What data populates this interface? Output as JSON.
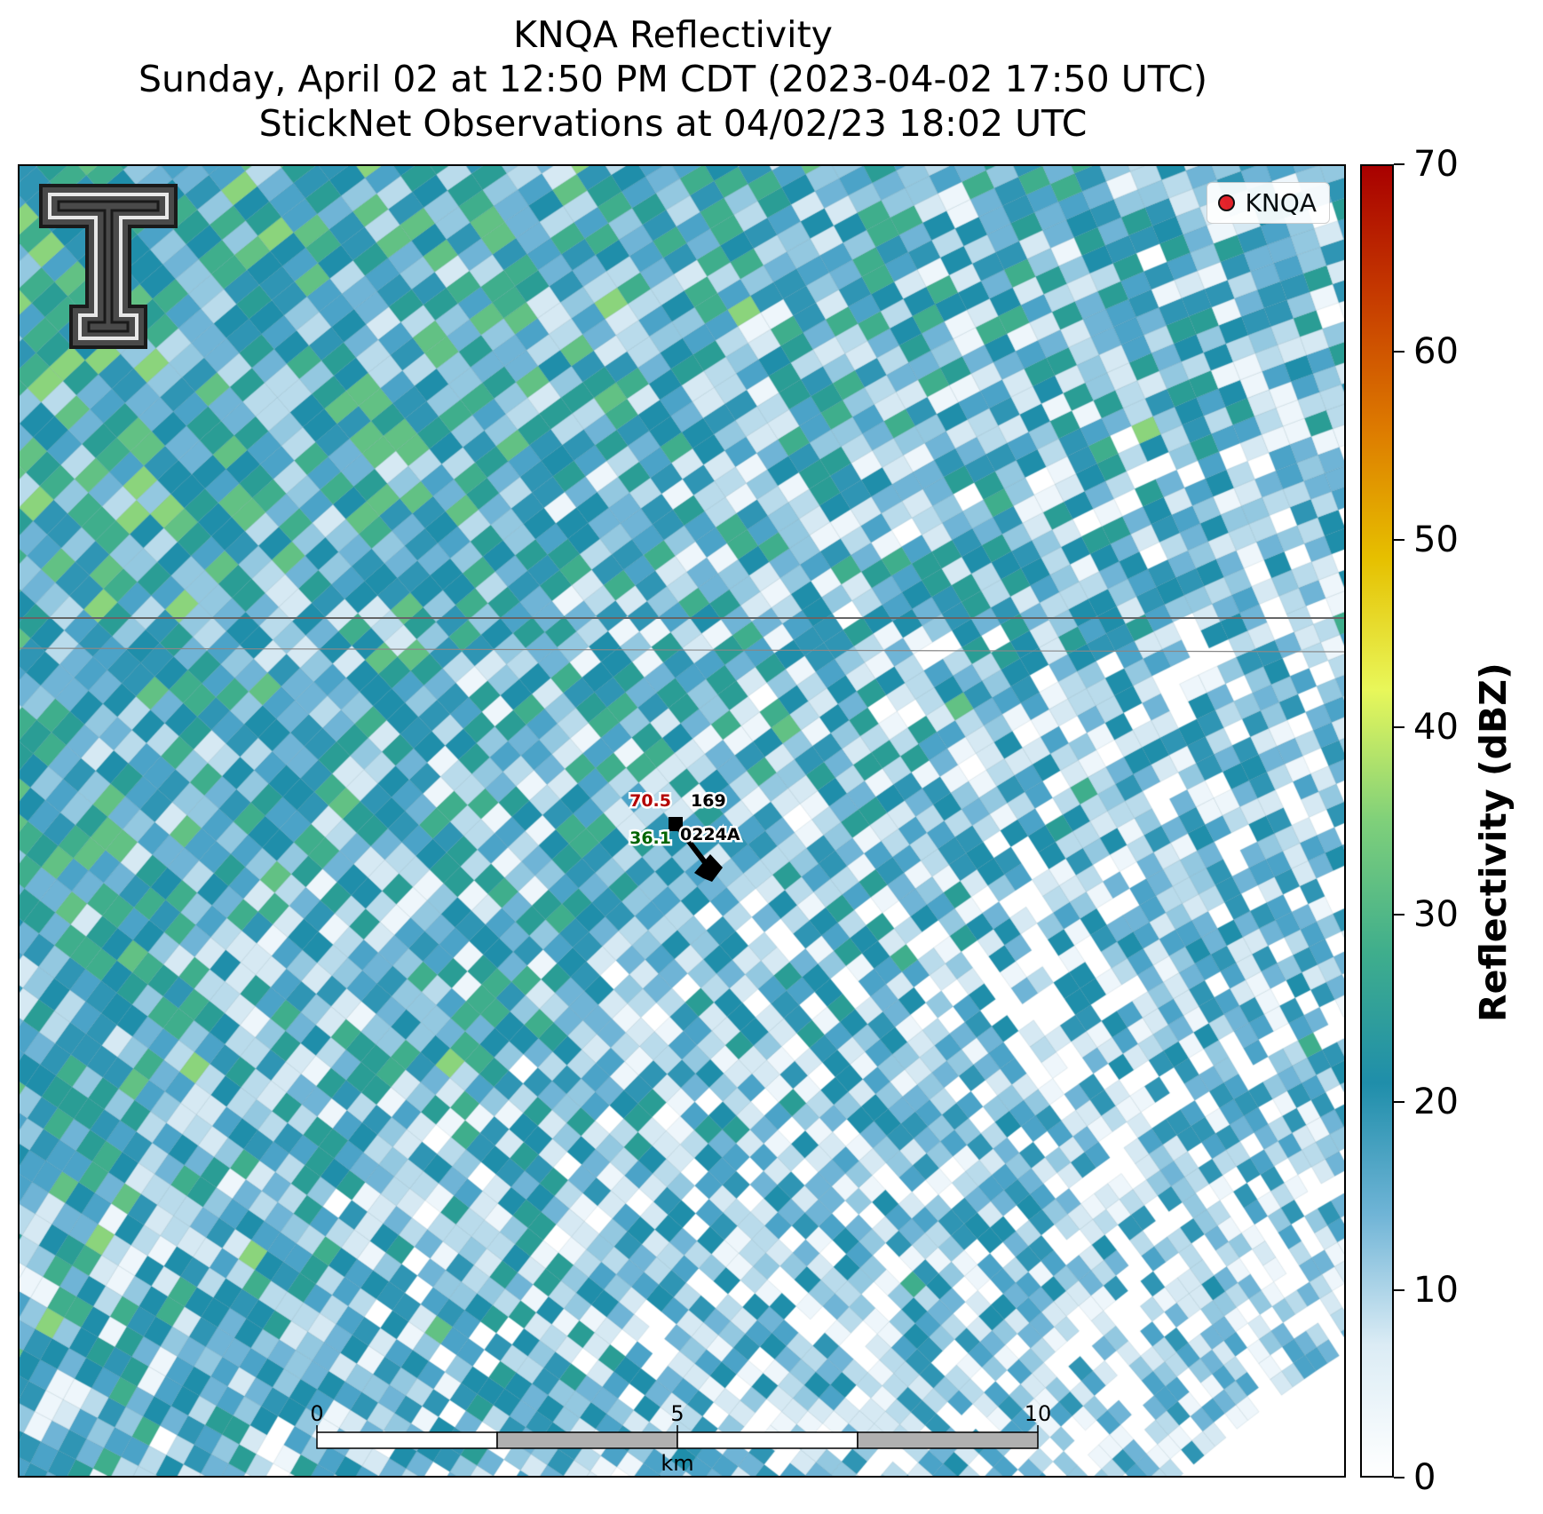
{
  "title": {
    "line1": "KNQA Reflectivity",
    "line2": "Sunday, April 02 at 12:50 PM CDT (2023-04-02 17:50 UTC)",
    "line3": "StickNet Observations at 04/02/23 18:02 UTC"
  },
  "legend": {
    "label": "KNQA",
    "marker_color": "#e8141b"
  },
  "station": {
    "temperature": "70.5",
    "temperature_color": "#b30000",
    "dewpoint": "36.1",
    "dewpoint_color": "#006400",
    "pressure": "169",
    "id": "0224A"
  },
  "scalebar": {
    "ticks": [
      "0",
      "5",
      "10"
    ],
    "unit": "km"
  },
  "colorbar": {
    "label": "Reflectivity (dBZ)",
    "min": 0,
    "max": 70,
    "ticks": [
      "0",
      "10",
      "20",
      "30",
      "40",
      "50",
      "60",
      "70"
    ],
    "colors": [
      "#ffffff",
      "#dbecf5",
      "#6fb4d6",
      "#1f8eaa",
      "#3fae8c",
      "#7fd07a",
      "#e8f75a",
      "#e6c000",
      "#dd7a00",
      "#c63b00",
      "#a80000"
    ]
  },
  "logo": {
    "name": "Texas Tech Double T"
  }
}
